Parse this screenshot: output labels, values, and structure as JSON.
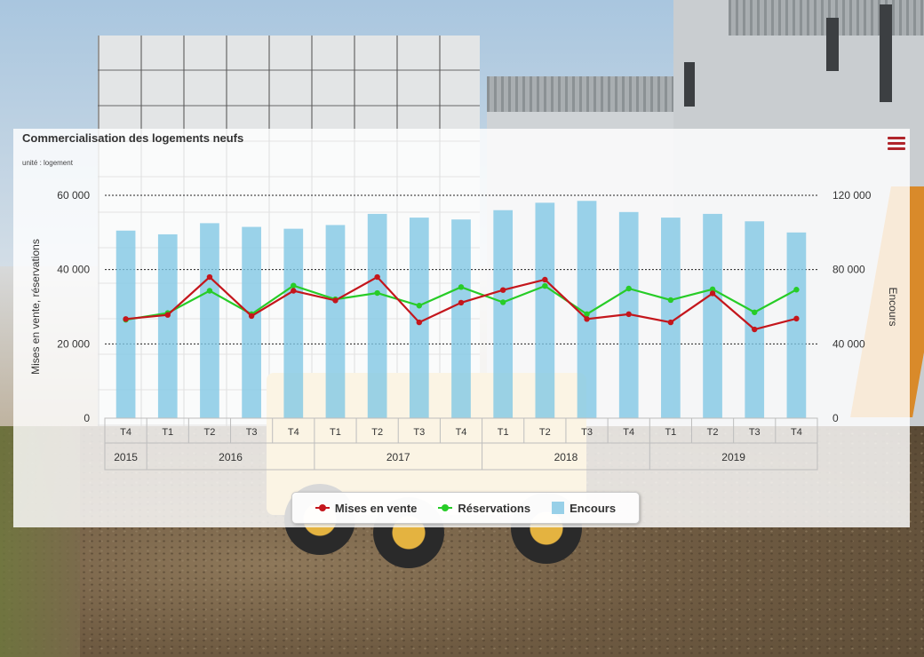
{
  "chart_title": "Commercialisation des logements neufs",
  "unit_label": "unité : logement",
  "icons": {
    "menu": "hamburger-menu-icon"
  },
  "colors": {
    "mises": "#c4161c",
    "reservations": "#27cc27",
    "encours": "#7fc6e4",
    "menu": "#b0252b"
  },
  "chart_data": {
    "type": "bar",
    "title": "Commercialisation des logements neufs",
    "categories": [
      "T4",
      "T1",
      "T2",
      "T3",
      "T4",
      "T1",
      "T2",
      "T3",
      "T4",
      "T1",
      "T2",
      "T3",
      "T4",
      "T1",
      "T2",
      "T3",
      "T4"
    ],
    "year_groups": [
      {
        "label": "2015",
        "span": 1
      },
      {
        "label": "2016",
        "span": 4
      },
      {
        "label": "2017",
        "span": 4
      },
      {
        "label": "2018",
        "span": 4
      },
      {
        "label": "2019",
        "span": 4
      }
    ],
    "ylabel": "Mises en vente, réservations",
    "y2label": "Encours",
    "ylim": [
      0,
      60000
    ],
    "y2lim": [
      0,
      120000
    ],
    "yticks": [
      "0",
      "20 000",
      "40 000",
      "60 000"
    ],
    "y2ticks": [
      "0",
      "40 000",
      "80 000",
      "120 000"
    ],
    "grid": true,
    "legend_position": "bottom",
    "series": [
      {
        "name": "Encours",
        "type": "bar",
        "axis": "right",
        "values": [
          101000,
          99000,
          105000,
          103000,
          102000,
          104000,
          110000,
          108000,
          107000,
          112000,
          116000,
          117000,
          111000,
          108000,
          110000,
          106000,
          100000
        ]
      },
      {
        "name": "Mises en vente",
        "type": "line",
        "axis": "left",
        "values": [
          26700,
          27800,
          38000,
          27500,
          34300,
          31700,
          38000,
          25800,
          31100,
          34500,
          37300,
          26700,
          28000,
          25800,
          33600,
          23900,
          26800
        ]
      },
      {
        "name": "Réservations",
        "type": "line",
        "axis": "left",
        "values": [
          26500,
          28300,
          34300,
          28000,
          35700,
          32000,
          33700,
          30300,
          35300,
          31200,
          35600,
          28000,
          34900,
          31800,
          34700,
          28500,
          34600
        ]
      }
    ]
  }
}
